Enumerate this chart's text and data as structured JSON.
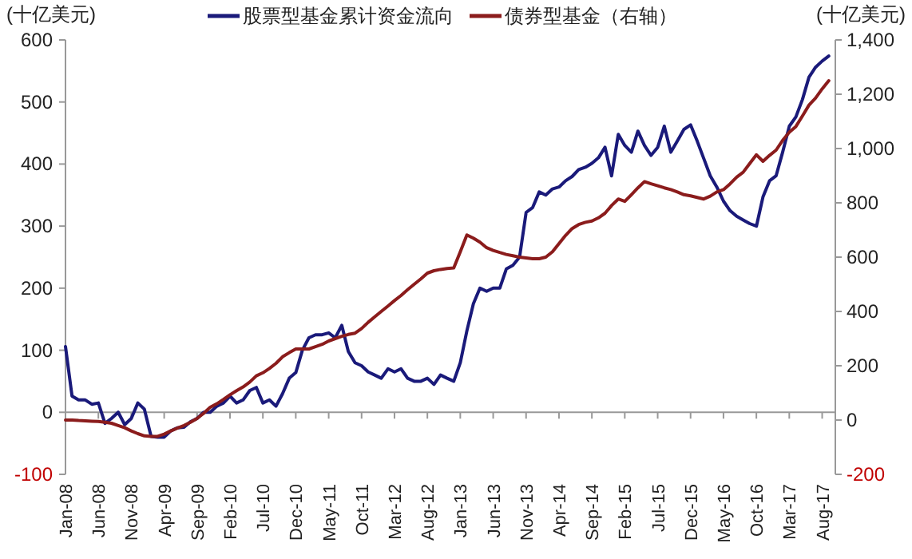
{
  "chart_data": {
    "type": "line",
    "ylabel": "(十亿美元)",
    "y2label": "(十亿美元)",
    "ylim": [
      -100,
      600
    ],
    "yticks": [
      -100,
      0,
      100,
      200,
      300,
      400,
      500,
      600
    ],
    "y2lim": [
      -200,
      1400
    ],
    "y2ticks": [
      -200,
      0,
      200,
      400,
      600,
      800,
      {
        "value": 1000,
        "label": "1,000"
      },
      {
        "value": 1200,
        "label": "1,200"
      },
      {
        "value": 1400,
        "label": "1,400"
      }
    ],
    "xlim": [
      "2008-01",
      "2017-10"
    ],
    "xticks": [
      {
        "value": "2008-01",
        "label": "Jan-08"
      },
      {
        "value": "2008-06",
        "label": "Jun-08"
      },
      {
        "value": "2008-11",
        "label": "Nov-08"
      },
      {
        "value": "2009-04",
        "label": "Apr-09"
      },
      {
        "value": "2009-09",
        "label": "Sep-09"
      },
      {
        "value": "2010-02",
        "label": "Feb-10"
      },
      {
        "value": "2010-07",
        "label": "Jul-10"
      },
      {
        "value": "2010-12",
        "label": "Dec-10"
      },
      {
        "value": "2011-05",
        "label": "May-11"
      },
      {
        "value": "2011-10",
        "label": "Oct-11"
      },
      {
        "value": "2012-03",
        "label": "Mar-12"
      },
      {
        "value": "2012-08",
        "label": "Aug-12"
      },
      {
        "value": "2013-01",
        "label": "Jan-13"
      },
      {
        "value": "2013-06",
        "label": "Jun-13"
      },
      {
        "value": "2013-11",
        "label": "Nov-13"
      },
      {
        "value": "2014-04",
        "label": "Apr-14"
      },
      {
        "value": "2014-09",
        "label": "Sep-14"
      },
      {
        "value": "2015-02",
        "label": "Feb-15"
      },
      {
        "value": "2015-07",
        "label": "Jul-15"
      },
      {
        "value": "2015-12",
        "label": "Dec-15"
      },
      {
        "value": "2016-05",
        "label": "May-16"
      },
      {
        "value": "2016-10",
        "label": "Oct-16"
      },
      {
        "value": "2017-03",
        "label": "Mar-17"
      },
      {
        "value": "2017-08",
        "label": "Aug-17"
      }
    ],
    "legend": "top",
    "x": [
      "2008-01",
      "2008-02",
      "2008-03",
      "2008-04",
      "2008-05",
      "2008-06",
      "2008-07",
      "2008-08",
      "2008-09",
      "2008-10",
      "2008-11",
      "2008-12",
      "2009-01",
      "2009-02",
      "2009-03",
      "2009-04",
      "2009-05",
      "2009-06",
      "2009-07",
      "2009-08",
      "2009-09",
      "2009-10",
      "2009-11",
      "2009-12",
      "2010-01",
      "2010-02",
      "2010-03",
      "2010-04",
      "2010-05",
      "2010-06",
      "2010-07",
      "2010-08",
      "2010-09",
      "2010-10",
      "2010-11",
      "2010-12",
      "2011-01",
      "2011-02",
      "2011-03",
      "2011-04",
      "2011-05",
      "2011-06",
      "2011-07",
      "2011-08",
      "2011-09",
      "2011-10",
      "2011-11",
      "2011-12",
      "2012-01",
      "2012-02",
      "2012-03",
      "2012-04",
      "2012-05",
      "2012-06",
      "2012-07",
      "2012-08",
      "2012-09",
      "2012-10",
      "2012-11",
      "2012-12",
      "2013-01",
      "2013-02",
      "2013-03",
      "2013-04",
      "2013-05",
      "2013-06",
      "2013-07",
      "2013-08",
      "2013-09",
      "2013-10",
      "2013-11",
      "2013-12",
      "2014-01",
      "2014-02",
      "2014-03",
      "2014-04",
      "2014-05",
      "2014-06",
      "2014-07",
      "2014-08",
      "2014-09",
      "2014-10",
      "2014-11",
      "2014-12",
      "2015-01",
      "2015-02",
      "2015-03",
      "2015-04",
      "2015-05",
      "2015-06",
      "2015-07",
      "2015-08",
      "2015-09",
      "2015-10",
      "2015-11",
      "2015-12",
      "2016-01",
      "2016-02",
      "2016-03",
      "2016-04",
      "2016-05",
      "2016-06",
      "2016-07",
      "2016-08",
      "2016-09",
      "2016-10",
      "2016-11",
      "2016-12",
      "2017-01",
      "2017-02",
      "2017-03",
      "2017-04",
      "2017-05",
      "2017-06",
      "2017-07",
      "2017-08",
      "2017-09"
    ],
    "series": [
      {
        "name": "股票型基金累计资金流向",
        "color": "#1a1a7a",
        "values": [
          106,
          26,
          20,
          20,
          13,
          15,
          -18,
          -10,
          0,
          -20,
          -10,
          15,
          5,
          -39,
          -40,
          -40,
          -30,
          -25,
          -24,
          -15,
          -10,
          0,
          0,
          10,
          15,
          26,
          15,
          20,
          35,
          40,
          15,
          20,
          10,
          30,
          55,
          64,
          100,
          120,
          125,
          125,
          128,
          120,
          140,
          98,
          80,
          75,
          65,
          60,
          55,
          70,
          65,
          70,
          55,
          50,
          50,
          55,
          45,
          60,
          55,
          50,
          80,
          131,
          175,
          200,
          195,
          200,
          200,
          231,
          237,
          250,
          322,
          330,
          355,
          350,
          360,
          363,
          373,
          380,
          391,
          395,
          401,
          410,
          427,
          381,
          448,
          430,
          419,
          453,
          430,
          414,
          427,
          461,
          419,
          437,
          456,
          463,
          437,
          409,
          381,
          363,
          340,
          325,
          316,
          310,
          304,
          300,
          347,
          373,
          381,
          419,
          461,
          476,
          504,
          540,
          556,
          566,
          574
        ]
      },
      {
        "name": "债券型基金（右轴）",
        "color": "#8b1c1c",
        "axis": "y2",
        "values": [
          0,
          0,
          -2,
          -3,
          -4,
          -5,
          -8,
          -12,
          -20,
          -28,
          -40,
          -50,
          -58,
          -60,
          -60,
          -52,
          -40,
          -30,
          -20,
          -8,
          6,
          25,
          47,
          60,
          76,
          93,
          108,
          122,
          140,
          163,
          174,
          190,
          209,
          233,
          248,
          262,
          262,
          262,
          270,
          279,
          291,
          300,
          308,
          315,
          320,
          337,
          360,
          380,
          400,
          420,
          440,
          459,
          480,
          500,
          520,
          541,
          550,
          555,
          558,
          560,
          620,
          682,
          670,
          655,
          635,
          625,
          617,
          610,
          605,
          600,
          597,
          594,
          594,
          600,
          620,
          650,
          680,
          705,
          720,
          728,
          733,
          745,
          762,
          790,
          814,
          805,
          830,
          855,
          878,
          870,
          863,
          855,
          849,
          840,
          830,
          826,
          820,
          814,
          825,
          840,
          849,
          870,
          895,
          913,
          945,
          977,
          953,
          975,
          994,
          1030,
          1060,
          1081,
          1120,
          1160,
          1186,
          1220,
          1250
        ]
      }
    ]
  }
}
